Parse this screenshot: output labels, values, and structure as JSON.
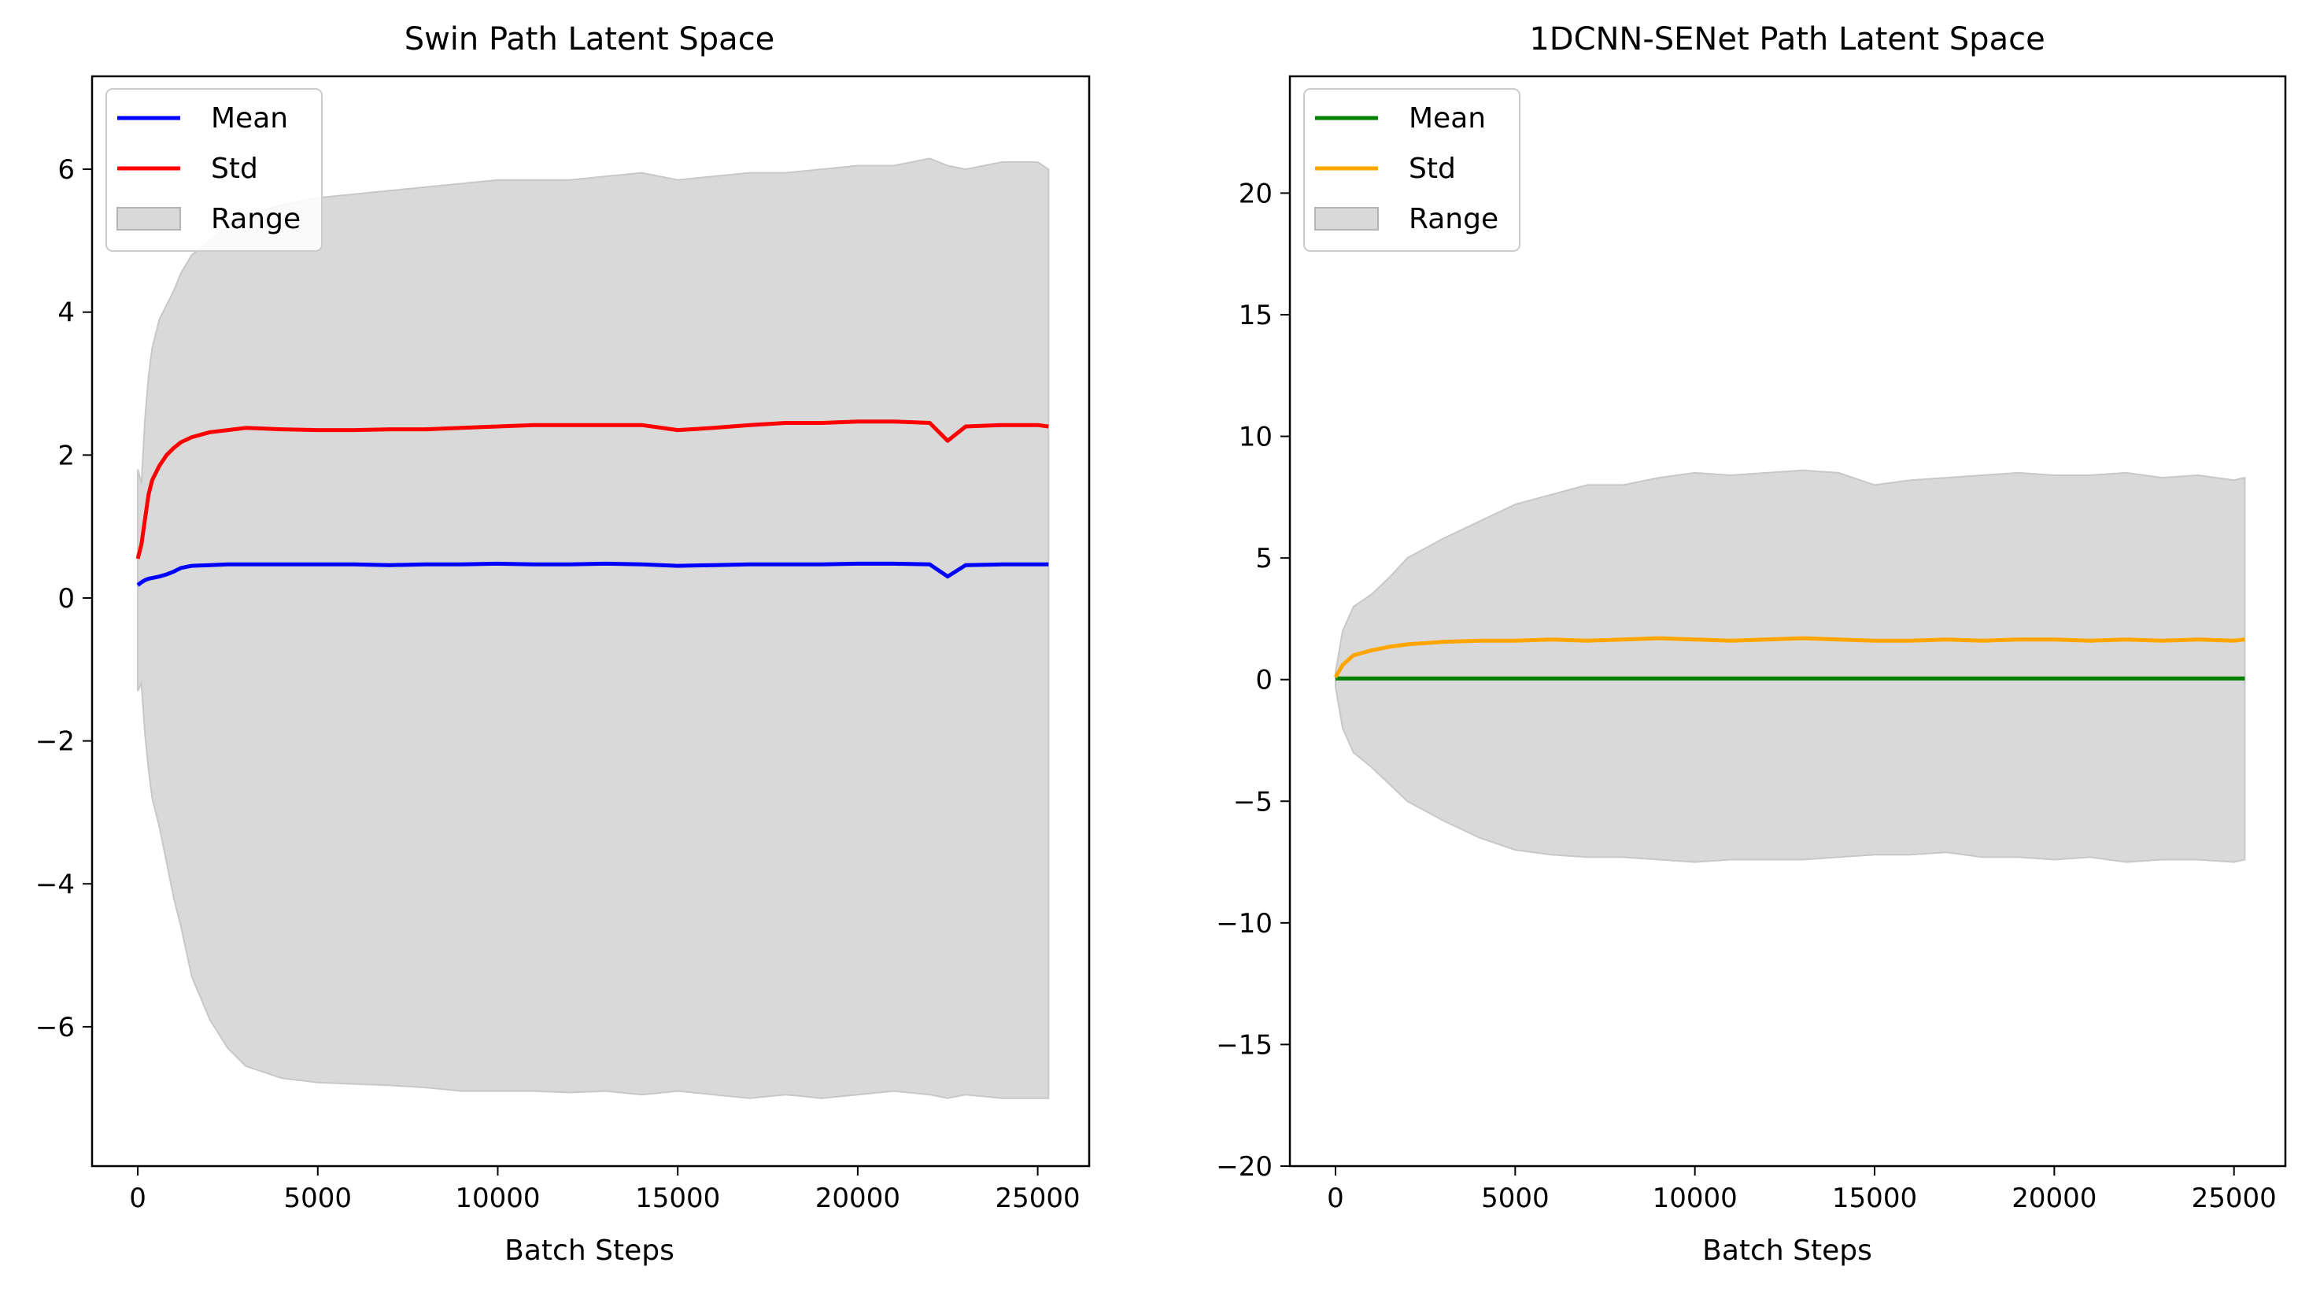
{
  "chart_data": [
    {
      "type": "line",
      "title": "Swin Path Latent Space",
      "xlabel": "Batch Steps",
      "ylabel": "",
      "xlim": [
        -1270,
        26430
      ],
      "ylim": [
        -7.95,
        7.3
      ],
      "xticks": [
        0,
        5000,
        10000,
        15000,
        20000,
        25000
      ],
      "xtick_labels": [
        "0",
        "5000",
        "10000",
        "15000",
        "20000",
        "25000"
      ],
      "yticks": [
        -6,
        -4,
        -2,
        0,
        2,
        4,
        6
      ],
      "ytick_labels": [
        "−6",
        "−4",
        "−2",
        "0",
        "2",
        "4",
        "6"
      ],
      "grid": false,
      "legend_position": "upper left",
      "legend": [
        "Mean",
        "Std",
        "Range"
      ],
      "x": [
        0,
        100,
        200,
        300,
        400,
        600,
        800,
        1000,
        1200,
        1500,
        2000,
        2500,
        3000,
        4000,
        5000,
        6000,
        7000,
        8000,
        9000,
        10000,
        11000,
        12000,
        13000,
        14000,
        15000,
        16000,
        17000,
        18000,
        19000,
        20000,
        21000,
        22000,
        22500,
        23000,
        24000,
        25000,
        25300
      ],
      "series": [
        {
          "name": "Mean",
          "color": "#0000ff",
          "values": [
            0.18,
            0.22,
            0.25,
            0.27,
            0.28,
            0.3,
            0.33,
            0.37,
            0.42,
            0.45,
            0.46,
            0.47,
            0.47,
            0.47,
            0.47,
            0.47,
            0.46,
            0.47,
            0.47,
            0.48,
            0.47,
            0.47,
            0.48,
            0.47,
            0.45,
            0.46,
            0.47,
            0.47,
            0.47,
            0.48,
            0.48,
            0.47,
            0.3,
            0.46,
            0.47,
            0.47,
            0.47
          ]
        },
        {
          "name": "Std",
          "color": "#ff0000",
          "values": [
            0.55,
            0.75,
            1.1,
            1.45,
            1.65,
            1.85,
            2.0,
            2.1,
            2.18,
            2.25,
            2.32,
            2.35,
            2.38,
            2.36,
            2.35,
            2.35,
            2.36,
            2.36,
            2.38,
            2.4,
            2.42,
            2.42,
            2.42,
            2.42,
            2.35,
            2.38,
            2.42,
            2.45,
            2.45,
            2.47,
            2.47,
            2.45,
            2.2,
            2.4,
            2.42,
            2.42,
            2.4
          ]
        },
        {
          "name": "Range (max)",
          "color": "#d9d9d9",
          "values": [
            1.8,
            1.6,
            2.5,
            3.1,
            3.5,
            3.9,
            4.1,
            4.3,
            4.55,
            4.8,
            5.0,
            5.2,
            5.35,
            5.5,
            5.6,
            5.65,
            5.7,
            5.75,
            5.8,
            5.85,
            5.85,
            5.85,
            5.9,
            5.95,
            5.85,
            5.9,
            5.95,
            5.95,
            6.0,
            6.05,
            6.05,
            6.15,
            6.05,
            6.0,
            6.1,
            6.1,
            6.0
          ]
        },
        {
          "name": "Range (min)",
          "color": "#d9d9d9",
          "values": [
            -1.3,
            -1.2,
            -1.9,
            -2.4,
            -2.8,
            -3.2,
            -3.7,
            -4.2,
            -4.6,
            -5.3,
            -5.9,
            -6.3,
            -6.55,
            -6.72,
            -6.78,
            -6.8,
            -6.82,
            -6.85,
            -6.9,
            -6.9,
            -6.9,
            -6.92,
            -6.9,
            -6.95,
            -6.9,
            -6.95,
            -7.0,
            -6.95,
            -7.0,
            -6.95,
            -6.9,
            -6.95,
            -7.0,
            -6.95,
            -7.0,
            -7.0,
            -7.0
          ]
        }
      ]
    },
    {
      "type": "line",
      "title": "1DCNN-SENet Path Latent Space",
      "xlabel": "Batch Steps",
      "ylabel": "",
      "xlim": [
        -1270,
        26430
      ],
      "ylim": [
        -20,
        24.8
      ],
      "xticks": [
        0,
        5000,
        10000,
        15000,
        20000,
        25000
      ],
      "xtick_labels": [
        "0",
        "5000",
        "10000",
        "15000",
        "20000",
        "25000"
      ],
      "yticks": [
        -20,
        -15,
        -10,
        -5,
        0,
        5,
        10,
        15,
        20
      ],
      "ytick_labels": [
        "−20",
        "−15",
        "−10",
        "−5",
        "0",
        "5",
        "10",
        "15",
        "20"
      ],
      "grid": false,
      "legend_position": "upper left",
      "legend": [
        "Mean",
        "Std",
        "Range"
      ],
      "x": [
        0,
        200,
        500,
        1000,
        1500,
        2000,
        3000,
        4000,
        5000,
        6000,
        7000,
        8000,
        9000,
        10000,
        11000,
        12000,
        13000,
        14000,
        15000,
        16000,
        17000,
        18000,
        19000,
        20000,
        21000,
        22000,
        23000,
        24000,
        25000,
        25300
      ],
      "series": [
        {
          "name": "Mean",
          "color": "#008000",
          "values": [
            0.05,
            0.05,
            0.05,
            0.05,
            0.05,
            0.05,
            0.05,
            0.05,
            0.05,
            0.05,
            0.05,
            0.05,
            0.05,
            0.05,
            0.05,
            0.05,
            0.05,
            0.05,
            0.05,
            0.05,
            0.05,
            0.05,
            0.05,
            0.05,
            0.05,
            0.05,
            0.05,
            0.05,
            0.05,
            0.05
          ]
        },
        {
          "name": "Std",
          "color": "#ffa500",
          "values": [
            0.1,
            0.6,
            1.0,
            1.2,
            1.35,
            1.45,
            1.55,
            1.6,
            1.6,
            1.65,
            1.6,
            1.65,
            1.7,
            1.65,
            1.6,
            1.65,
            1.7,
            1.65,
            1.6,
            1.6,
            1.65,
            1.6,
            1.65,
            1.65,
            1.6,
            1.65,
            1.6,
            1.65,
            1.6,
            1.65
          ]
        },
        {
          "name": "Range (max)",
          "color": "#d9d9d9",
          "values": [
            0.3,
            2.0,
            3.0,
            3.5,
            4.2,
            5.0,
            5.8,
            6.5,
            7.2,
            7.6,
            8.0,
            8.0,
            8.3,
            8.5,
            8.4,
            8.5,
            8.6,
            8.5,
            8.0,
            8.2,
            8.3,
            8.4,
            8.5,
            8.4,
            8.4,
            8.5,
            8.3,
            8.4,
            8.2,
            8.3
          ]
        },
        {
          "name": "Range (min)",
          "color": "#d9d9d9",
          "values": [
            -0.3,
            -2.0,
            -3.0,
            -3.6,
            -4.3,
            -5.0,
            -5.8,
            -6.5,
            -7.0,
            -7.2,
            -7.3,
            -7.3,
            -7.4,
            -7.5,
            -7.4,
            -7.4,
            -7.4,
            -7.3,
            -7.2,
            -7.2,
            -7.1,
            -7.3,
            -7.3,
            -7.4,
            -7.3,
            -7.5,
            -7.4,
            -7.4,
            -7.5,
            -7.4
          ]
        }
      ]
    }
  ]
}
